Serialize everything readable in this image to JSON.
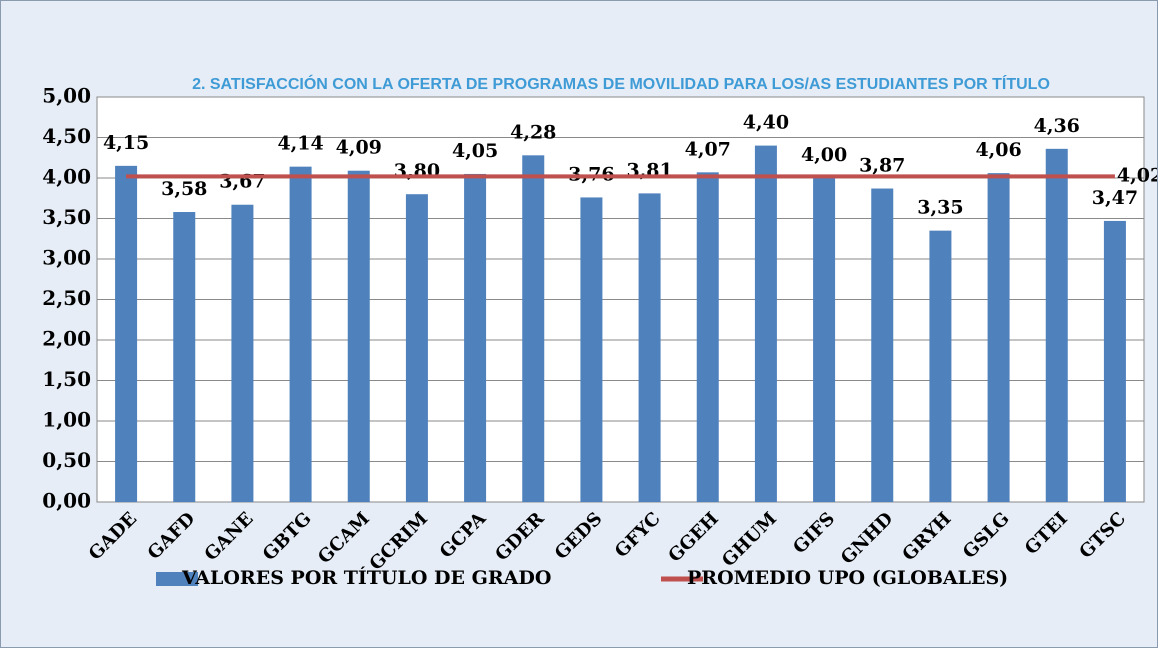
{
  "chart_data": {
    "type": "bar",
    "title": "2. SATISFACCIÓN CON LA OFERTA DE PROGRAMAS DE MOVILIDAD PARA LOS/AS ESTUDIANTES POR TÍTULO",
    "categories": [
      "GADE",
      "GAFD",
      "GANE",
      "GBTG",
      "GCAM",
      "GCRIM",
      "GCPA",
      "GDER",
      "GEDS",
      "GFYC",
      "GGEH",
      "GHUM",
      "GIFS",
      "GNHD",
      "GRYH",
      "GSLG",
      "GTEI",
      "GTSC"
    ],
    "series": [
      {
        "name": "VALORES POR TÍTULO DE GRADO",
        "color": "#4f81bd",
        "values": [
          4.15,
          3.58,
          3.67,
          4.14,
          4.09,
          3.8,
          4.05,
          4.28,
          3.76,
          3.81,
          4.07,
          4.4,
          4.0,
          3.87,
          3.35,
          4.06,
          4.36,
          3.47
        ],
        "value_labels": [
          "4,15",
          "3,58",
          "3,67",
          "4,14",
          "4,09",
          "3,80",
          "4,05",
          "4,28",
          "3,76",
          "3,81",
          "4,07",
          "4,40",
          "4,00",
          "3,87",
          "3,35",
          "4,06",
          "4,36",
          "3,47"
        ]
      },
      {
        "name": "PROMEDIO UPO (GLOBALES)",
        "color": "#c0504d",
        "type": "line",
        "values": [
          4.02,
          4.02,
          4.02,
          4.02,
          4.02,
          4.02,
          4.02,
          4.02,
          4.02,
          4.02,
          4.02,
          4.02,
          4.02,
          4.02,
          4.02,
          4.02,
          4.02,
          4.02
        ],
        "value_labels": [
          null,
          null,
          null,
          null,
          null,
          null,
          null,
          null,
          null,
          null,
          null,
          null,
          null,
          null,
          null,
          null,
          null,
          "4,02"
        ]
      }
    ],
    "ylim": [
      0,
      5
    ],
    "yticks": [
      {
        "value": 0,
        "label": "0,00"
      },
      {
        "value": 0.5,
        "label": "0,50"
      },
      {
        "value": 1,
        "label": "1,00"
      },
      {
        "value": 1.5,
        "label": "1,50"
      },
      {
        "value": 2,
        "label": "2,00"
      },
      {
        "value": 2.5,
        "label": "2,50"
      },
      {
        "value": 3,
        "label": "3,00"
      },
      {
        "value": 3.5,
        "label": "3,50"
      },
      {
        "value": 4,
        "label": "4,00"
      },
      {
        "value": 4.5,
        "label": "4,50"
      },
      {
        "value": 5,
        "label": "5,00"
      }
    ],
    "grid": true
  }
}
